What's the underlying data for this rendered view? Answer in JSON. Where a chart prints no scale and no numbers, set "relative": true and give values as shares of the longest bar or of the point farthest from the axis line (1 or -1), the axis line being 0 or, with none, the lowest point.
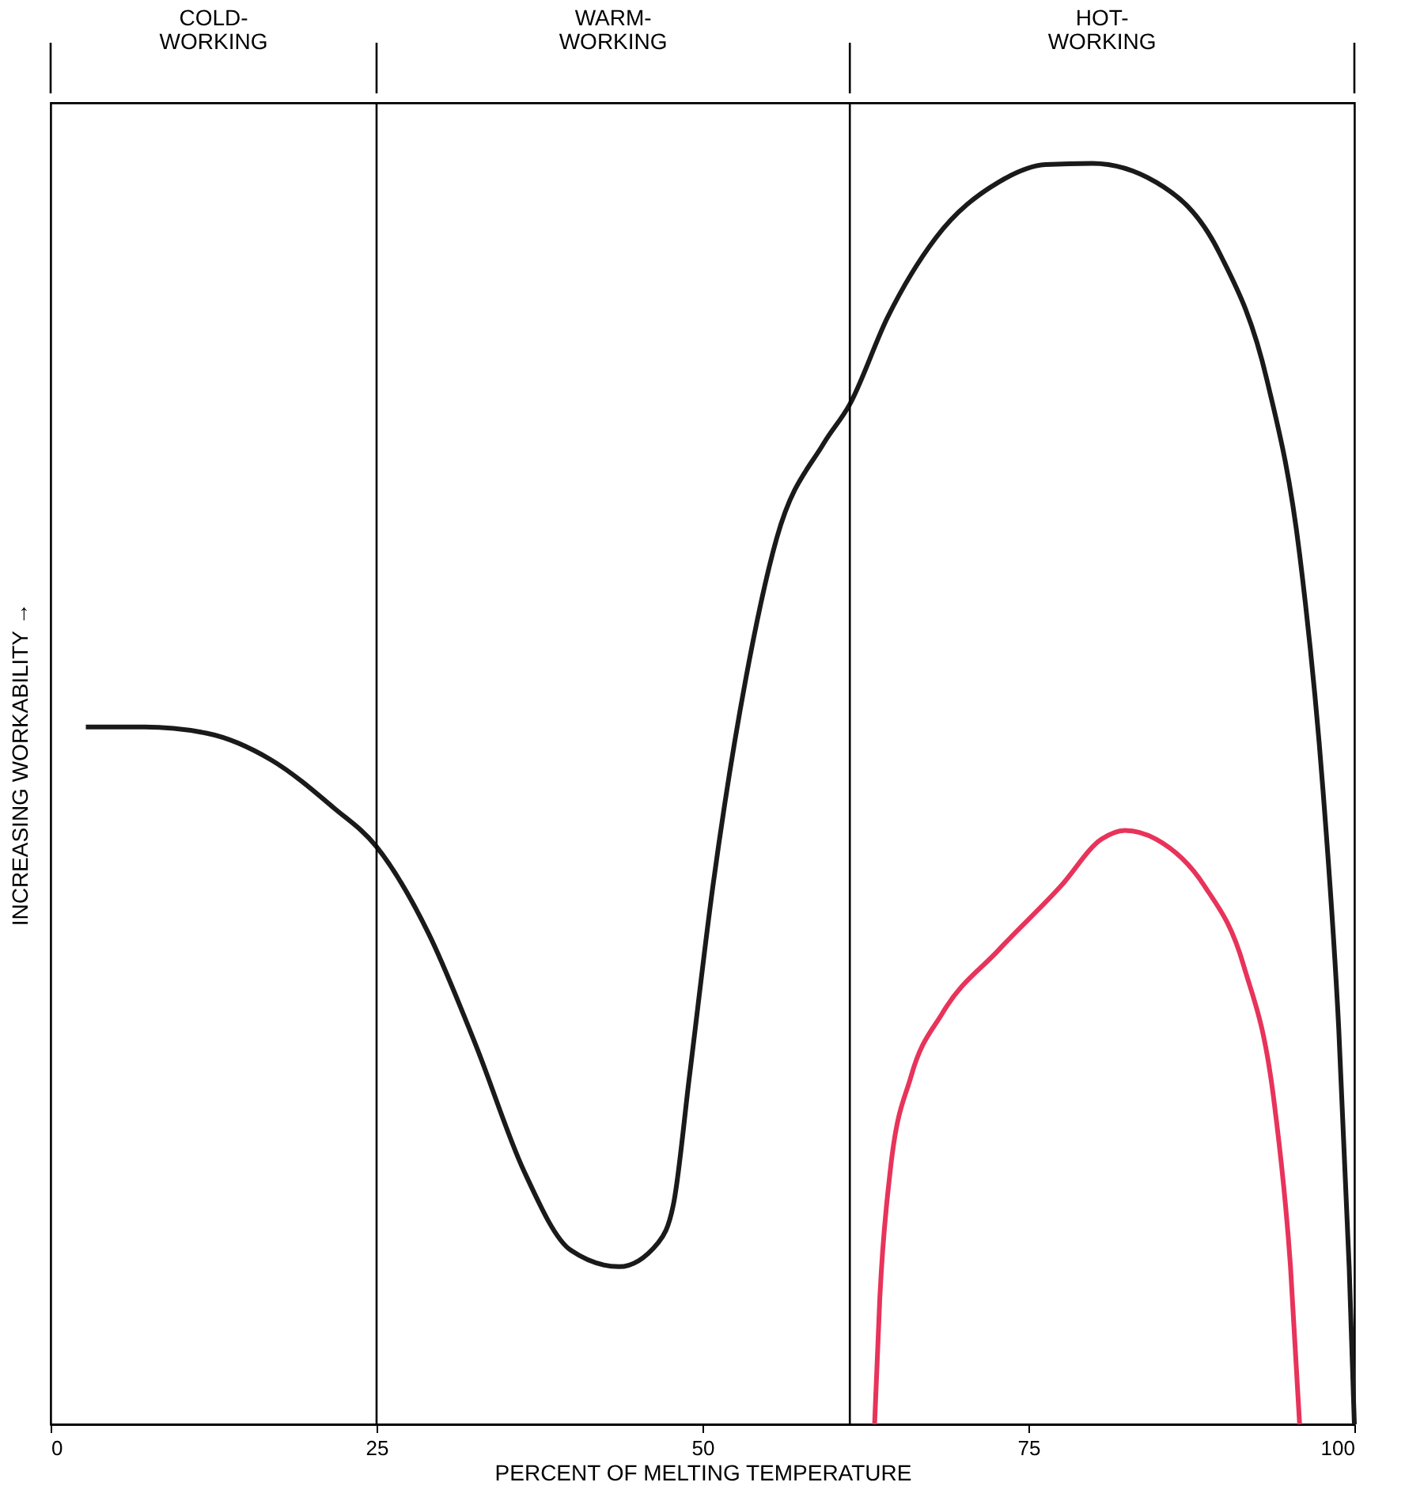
{
  "chart_data": {
    "type": "line",
    "relative": true,
    "xlabel": "PERCENT OF MELTING TEMPERATURE",
    "ylabel": "INCREASING WORKABILITY →",
    "xlim": [
      0,
      100
    ],
    "xticks": [
      0,
      25,
      50,
      75,
      100
    ],
    "grid": false,
    "legend": false,
    "marker": "none",
    "line_style": "solid",
    "series": [
      {
        "color": "#1a1a1a",
        "x": [
          2.7,
          7.2,
          12.0,
          16.9,
          21.7,
          25.0,
          29.0,
          32.6,
          36.3,
          39.9,
          43.6,
          46.6,
          47.8,
          49.0,
          50.8,
          53.3,
          55.7,
          59.3,
          61.3,
          64.2,
          67.9,
          72.7,
          76.3,
          79.9,
          84.8,
          89.7,
          93.3,
          95.8,
          97.6,
          98.8,
          99.6,
          100
        ],
        "values": [
          0.553,
          0.553,
          0.548,
          0.527,
          0.489,
          0.458,
          0.389,
          0.301,
          0.201,
          0.138,
          0.125,
          0.144,
          0.176,
          0.276,
          0.427,
          0.59,
          0.703,
          0.778,
          0.809,
          0.878,
          0.941,
          0.985,
          0.999,
          1.0,
          0.985,
          0.928,
          0.828,
          0.69,
          0.502,
          0.314,
          0.125,
          0
        ]
      },
      {
        "color": "#e8335a",
        "x": [
          63.2,
          63.6,
          64.4,
          66.0,
          68.4,
          72.7,
          77.5,
          80.6,
          82.4,
          84.8,
          88.5,
          91.5,
          93.9,
          95.1,
          95.8
        ],
        "values": [
          0,
          0.1,
          0.201,
          0.276,
          0.326,
          0.376,
          0.427,
          0.464,
          0.471,
          0.464,
          0.427,
          0.364,
          0.251,
          0.125,
          0
        ]
      }
    ],
    "ref_lines": [
      {
        "axis": "x",
        "value": 25
      },
      {
        "axis": "x",
        "value": 61.3
      }
    ],
    "annotations": [
      "COLD-WORKING",
      "WARM-WORKING",
      "HOT-WORKING"
    ]
  }
}
